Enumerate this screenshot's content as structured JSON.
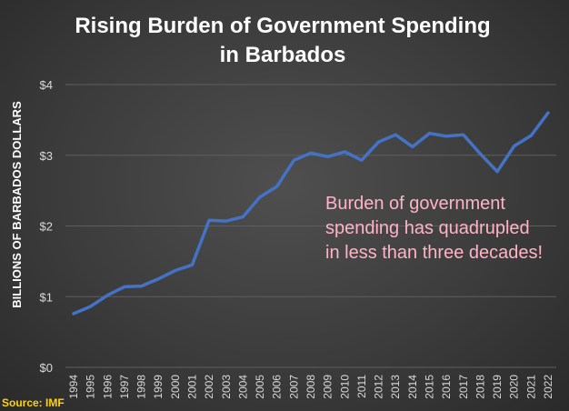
{
  "chart_data": {
    "type": "line",
    "title": "Rising Burden of Government Spending in Barbados",
    "title_lines": [
      "Rising Burden of Government Spending",
      "in Barbados"
    ],
    "ylabel": "BILLIONS OF BARBADOS DOLLARS",
    "xlabel": "",
    "ylim": [
      0,
      4
    ],
    "yticks": [
      0,
      1,
      2,
      3,
      4
    ],
    "ytick_labels": [
      "$0",
      "$1",
      "$2",
      "$3",
      "$4"
    ],
    "grid": true,
    "x": [
      "1994",
      "1995",
      "1996",
      "1997",
      "1998",
      "1999",
      "2000",
      "2001",
      "2002",
      "2003",
      "2004",
      "2005",
      "2006",
      "2007",
      "2008",
      "2009",
      "2010",
      "2011",
      "2012",
      "2013",
      "2014",
      "2015",
      "2016",
      "2017",
      "2018",
      "2019",
      "2020",
      "2021",
      "2022"
    ],
    "series": [
      {
        "color": "#4472c4",
        "values": [
          0.76,
          0.86,
          1.02,
          1.14,
          1.15,
          1.25,
          1.37,
          1.45,
          2.08,
          2.07,
          2.13,
          2.41,
          2.56,
          2.93,
          3.03,
          2.98,
          3.05,
          2.93,
          3.19,
          3.29,
          3.12,
          3.31,
          3.27,
          3.29,
          3.02,
          2.77,
          3.13,
          3.28,
          3.6
        ]
      }
    ],
    "annotation": {
      "lines": [
        "Burden of government",
        "spending has quadrupled",
        "in less than three decades!"
      ],
      "color": "#ffb3c6"
    },
    "source": "Source: IMF"
  }
}
